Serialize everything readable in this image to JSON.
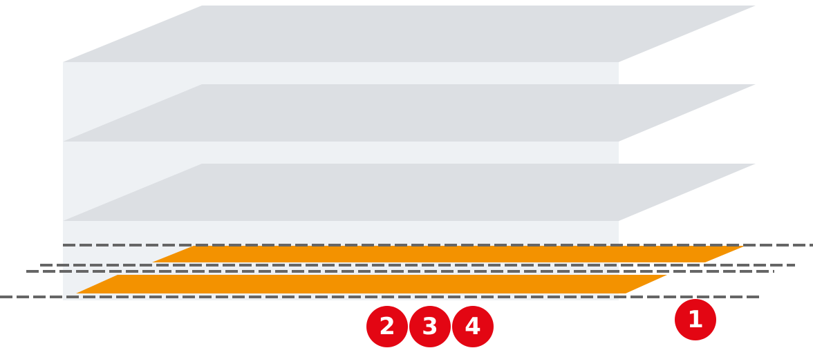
{
  "markers": [
    "1",
    "2",
    "3",
    "4"
  ]
}
